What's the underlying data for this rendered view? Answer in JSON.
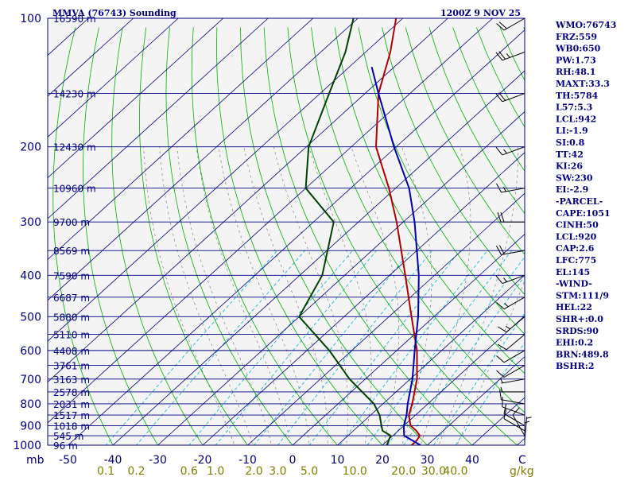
{
  "header": {
    "station_title": "MMVA (76743) Sounding",
    "time_title": "1200Z  9 NOV 25"
  },
  "indices": [
    "WMO:76743",
    "FRZ:559",
    "WB0:650",
    "PW:1.73",
    "RH:48.1",
    "MAXT:33.3",
    "TH:5784",
    "L57:5.3",
    "LCL:942",
    "LI:-1.9",
    "SI:0.8",
    "TT:42",
    "KI:26",
    "SW:230",
    "EI:-2.9",
    "-PARCEL-",
    "CAPE:1051",
    "CINH:50",
    "LCL:920",
    "CAP:2.6",
    "LFC:775",
    "EL:145",
    "-WIND-",
    "STM:111/9",
    "HEL:22",
    "SHR+:0.0",
    "SRDS:90",
    "EHI:0.2",
    "BRN:489.8",
    "BSHR:2"
  ],
  "colors": {
    "frame": "#000080",
    "isotherm": "#000080",
    "dry_adiabat": "#00b000",
    "mixing_ratio": "#00b4d0",
    "moist_adiabat": "#808080",
    "temperature": "#b00000",
    "dewpoint": "#004000",
    "parcel": "#0000b0",
    "wind_barb": "#000000",
    "tick_label": "#000080",
    "mixing_label": "#808000"
  },
  "chart_data": {
    "type": "skew-t log-p sounding",
    "x_unit_label": "C",
    "y_unit_label": "mb",
    "mixing_unit_label": "g/kg",
    "pressure_range_mb": [
      1000,
      100
    ],
    "temperature_range_c": [
      -50,
      50
    ],
    "pressure_ticks": [
      {
        "p": 100,
        "label": "100"
      },
      {
        "p": 200,
        "label": "200"
      },
      {
        "p": 300,
        "label": "300"
      },
      {
        "p": 400,
        "label": "400"
      },
      {
        "p": 500,
        "label": "500"
      },
      {
        "p": 600,
        "label": "600"
      },
      {
        "p": 700,
        "label": "700"
      },
      {
        "p": 800,
        "label": "800"
      },
      {
        "p": 900,
        "label": "900"
      },
      {
        "p": 1000,
        "label": "1000"
      }
    ],
    "height_levels": [
      {
        "p": 100,
        "label": "16590 m"
      },
      {
        "p": 150,
        "label": "14230 m"
      },
      {
        "p": 200,
        "label": "12430 m"
      },
      {
        "p": 250,
        "label": "10960 m"
      },
      {
        "p": 300,
        "label": "9700 m"
      },
      {
        "p": 350,
        "label": "8569 m"
      },
      {
        "p": 400,
        "label": "7590 m"
      },
      {
        "p": 450,
        "label": "6687 m"
      },
      {
        "p": 500,
        "label": "5880 m"
      },
      {
        "p": 550,
        "label": "5110 m"
      },
      {
        "p": 600,
        "label": "4408 m"
      },
      {
        "p": 650,
        "label": "3761 m"
      },
      {
        "p": 700,
        "label": "3163 m"
      },
      {
        "p": 750,
        "label": "2578 m"
      },
      {
        "p": 800,
        "label": "2031 m"
      },
      {
        "p": 850,
        "label": "1517 m"
      },
      {
        "p": 900,
        "label": "1018 m"
      },
      {
        "p": 950,
        "label": "545 m"
      },
      {
        "p": 1000,
        "label": "96 m"
      }
    ],
    "temperature_ticks": [
      {
        "t": -50,
        "label": "-50"
      },
      {
        "t": -40,
        "label": "-40"
      },
      {
        "t": -30,
        "label": "-30"
      },
      {
        "t": -20,
        "label": "-20"
      },
      {
        "t": -10,
        "label": "-10"
      },
      {
        "t": 0,
        "label": "0"
      },
      {
        "t": 10,
        "label": "10"
      },
      {
        "t": 20,
        "label": "20"
      },
      {
        "t": 30,
        "label": "30"
      },
      {
        "t": 40,
        "label": "40"
      }
    ],
    "mixing_ratio_labels": [
      {
        "w": 0.1,
        "label": "0.1"
      },
      {
        "w": 0.2,
        "label": "0.2"
      },
      {
        "w": 0.6,
        "label": "0.6"
      },
      {
        "w": 1.0,
        "label": "1.0"
      },
      {
        "w": 2.0,
        "label": "2.0"
      },
      {
        "w": 3.0,
        "label": "3.0"
      },
      {
        "w": 5.0,
        "label": "5.0"
      },
      {
        "w": 10.0,
        "label": "10.0"
      },
      {
        "w": 20.0,
        "label": "20.0"
      },
      {
        "w": 30.0,
        "label": "30.0"
      },
      {
        "w": 40.0,
        "label": "40.0"
      }
    ],
    "series": [
      {
        "id": "temperature",
        "points": [
          {
            "p": 1000,
            "t": 26.5
          },
          {
            "p": 975,
            "t": 26.5
          },
          {
            "p": 950,
            "t": 26.0
          },
          {
            "p": 925,
            "t": 24.0
          },
          {
            "p": 900,
            "t": 21.5
          },
          {
            "p": 850,
            "t": 18.5
          },
          {
            "p": 800,
            "t": 16.5
          },
          {
            "p": 700,
            "t": 11.5
          },
          {
            "p": 600,
            "t": 4.5
          },
          {
            "p": 500,
            "t": -5.0
          },
          {
            "p": 400,
            "t": -16.5
          },
          {
            "p": 300,
            "t": -31.5
          },
          {
            "p": 250,
            "t": -41.5
          },
          {
            "p": 200,
            "t": -54.5
          },
          {
            "p": 150,
            "t": -67.0
          },
          {
            "p": 120,
            "t": -74.5
          },
          {
            "p": 100,
            "t": -81.5
          }
        ]
      },
      {
        "id": "dewpoint",
        "points": [
          {
            "p": 1000,
            "t": 21.0
          },
          {
            "p": 950,
            "t": 19.5
          },
          {
            "p": 925,
            "t": 16.5
          },
          {
            "p": 900,
            "t": 15.0
          },
          {
            "p": 850,
            "t": 12.0
          },
          {
            "p": 800,
            "t": 8.0
          },
          {
            "p": 700,
            "t": -3.5
          },
          {
            "p": 600,
            "t": -15.0
          },
          {
            "p": 500,
            "t": -30.0
          },
          {
            "p": 400,
            "t": -35.0
          },
          {
            "p": 300,
            "t": -45.5
          },
          {
            "p": 250,
            "t": -60.0
          },
          {
            "p": 200,
            "t": -69.5
          },
          {
            "p": 150,
            "t": -78.0
          },
          {
            "p": 120,
            "t": -84.5
          },
          {
            "p": 100,
            "t": -91.0
          }
        ]
      },
      {
        "id": "parcel",
        "points": [
          {
            "p": 1000,
            "t": 28.5
          },
          {
            "p": 950,
            "t": 22.5
          },
          {
            "p": 920,
            "t": 21.0
          },
          {
            "p": 900,
            "t": 20.0
          },
          {
            "p": 850,
            "t": 18.0
          },
          {
            "p": 800,
            "t": 15.5
          },
          {
            "p": 700,
            "t": 10.5
          },
          {
            "p": 600,
            "t": 4.0
          },
          {
            "p": 500,
            "t": -3.5
          },
          {
            "p": 400,
            "t": -13.5
          },
          {
            "p": 300,
            "t": -27.5
          },
          {
            "p": 250,
            "t": -37.0
          },
          {
            "p": 200,
            "t": -50.5
          },
          {
            "p": 150,
            "t": -67.0
          },
          {
            "p": 130,
            "t": -75.0
          }
        ]
      }
    ],
    "wind_barbs": [
      {
        "p": 1000,
        "dir": 0,
        "kt": 5
      },
      {
        "p": 975,
        "dir": 5,
        "kt": 5
      },
      {
        "p": 950,
        "dir": 330,
        "kt": 10
      },
      {
        "p": 925,
        "dir": 300,
        "kt": 10
      },
      {
        "p": 900,
        "dir": 300,
        "kt": 10
      },
      {
        "p": 850,
        "dir": 290,
        "kt": 10
      },
      {
        "p": 800,
        "dir": 280,
        "kt": 10
      },
      {
        "p": 750,
        "dir": 270,
        "kt": 5
      },
      {
        "p": 700,
        "dir": 260,
        "kt": 5
      },
      {
        "p": 650,
        "dir": 240,
        "kt": 10
      },
      {
        "p": 600,
        "dir": 240,
        "kt": 10
      },
      {
        "p": 550,
        "dir": 230,
        "kt": 10
      },
      {
        "p": 500,
        "dir": 230,
        "kt": 15
      },
      {
        "p": 450,
        "dir": 240,
        "kt": 15
      },
      {
        "p": 400,
        "dir": 250,
        "kt": 15
      },
      {
        "p": 350,
        "dir": 260,
        "kt": 20
      },
      {
        "p": 300,
        "dir": 270,
        "kt": 20
      },
      {
        "p": 250,
        "dir": 260,
        "kt": 15
      },
      {
        "p": 200,
        "dir": 250,
        "kt": 15
      },
      {
        "p": 150,
        "dir": 250,
        "kt": 20
      },
      {
        "p": 120,
        "dir": 250,
        "kt": 25
      },
      {
        "p": 100,
        "dir": 240,
        "kt": 20
      }
    ]
  }
}
